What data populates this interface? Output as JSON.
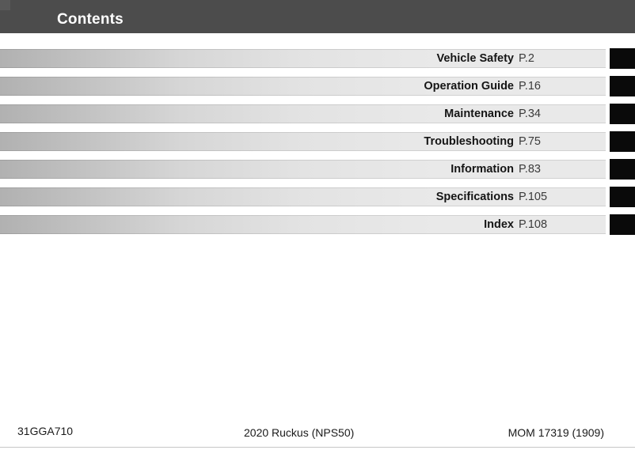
{
  "header": {
    "title": "Contents"
  },
  "toc": {
    "items": [
      {
        "title": "Vehicle Safety",
        "page": "P.2"
      },
      {
        "title": "Operation Guide",
        "page": "P.16"
      },
      {
        "title": "Maintenance",
        "page": "P.34"
      },
      {
        "title": "Troubleshooting",
        "page": "P.75"
      },
      {
        "title": "Information",
        "page": "P.83"
      },
      {
        "title": "Specifications",
        "page": "P.105"
      },
      {
        "title": "Index",
        "page": "P.108"
      }
    ]
  },
  "footer": {
    "left": "31GGA710",
    "center": "2020 Ruckus (NPS50)",
    "right": "MOM 17319 (1909)"
  },
  "colors": {
    "header_bg": "#4c4c4c",
    "bar_gradient_start": "#b1b1b1",
    "bar_gradient_end": "#e9e9e9",
    "tab_color": "#0a0a0a",
    "footer_rule": "#c6c6c6"
  }
}
